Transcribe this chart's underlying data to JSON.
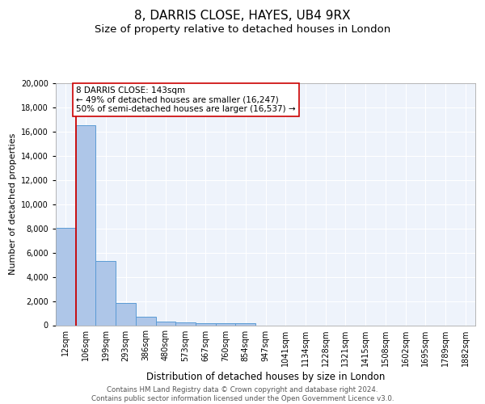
{
  "title": "8, DARRIS CLOSE, HAYES, UB4 9RX",
  "subtitle": "Size of property relative to detached houses in London",
  "xlabel": "Distribution of detached houses by size in London",
  "ylabel": "Number of detached properties",
  "categories": [
    "12sqm",
    "106sqm",
    "199sqm",
    "293sqm",
    "386sqm",
    "480sqm",
    "573sqm",
    "667sqm",
    "760sqm",
    "854sqm",
    "947sqm",
    "1041sqm",
    "1134sqm",
    "1228sqm",
    "1321sqm",
    "1415sqm",
    "1508sqm",
    "1602sqm",
    "1695sqm",
    "1789sqm",
    "1882sqm"
  ],
  "values": [
    8050,
    16500,
    5300,
    1850,
    700,
    320,
    215,
    190,
    165,
    150,
    0,
    0,
    0,
    0,
    0,
    0,
    0,
    0,
    0,
    0,
    0
  ],
  "bar_color": "#aec6e8",
  "bar_edge_color": "#5b9bd5",
  "background_color": "#eef3fb",
  "red_line_x": 0.5,
  "red_line_color": "#cc0000",
  "annotation_text": "8 DARRIS CLOSE: 143sqm\n← 49% of detached houses are smaller (16,247)\n50% of semi-detached houses are larger (16,537) →",
  "annotation_box_color": "#ffffff",
  "annotation_box_edge": "#cc0000",
  "ylim": [
    0,
    20000
  ],
  "yticks": [
    0,
    2000,
    4000,
    6000,
    8000,
    10000,
    12000,
    14000,
    16000,
    18000,
    20000
  ],
  "footer_line1": "Contains HM Land Registry data © Crown copyright and database right 2024.",
  "footer_line2": "Contains public sector information licensed under the Open Government Licence v3.0.",
  "title_fontsize": 11,
  "subtitle_fontsize": 9.5,
  "tick_fontsize": 7,
  "xlabel_fontsize": 8.5,
  "ylabel_fontsize": 8,
  "annotation_fontsize": 7.5,
  "footer_fontsize": 6.2
}
